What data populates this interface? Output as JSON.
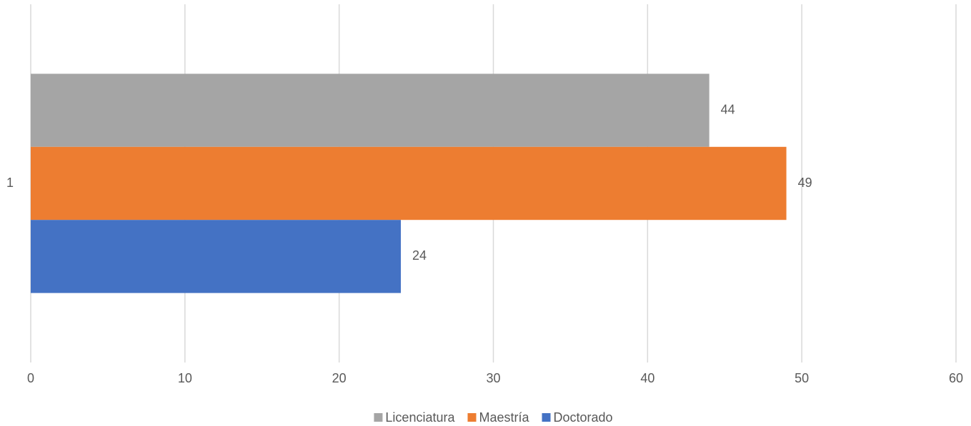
{
  "chart_data": {
    "type": "bar",
    "orientation": "horizontal",
    "categories": [
      "1"
    ],
    "series": [
      {
        "name": "Licenciatura",
        "color": "#a5a5a5",
        "values": [
          44
        ]
      },
      {
        "name": "Maestría",
        "color": "#ed7d31",
        "values": [
          49
        ]
      },
      {
        "name": "Doctorado",
        "color": "#4472c4",
        "values": [
          24
        ]
      }
    ],
    "xlim": [
      0,
      60
    ],
    "xticks": [
      0,
      10,
      20,
      30,
      40,
      50,
      60
    ],
    "grid": true,
    "legend": "bottom",
    "data_labels": true
  }
}
